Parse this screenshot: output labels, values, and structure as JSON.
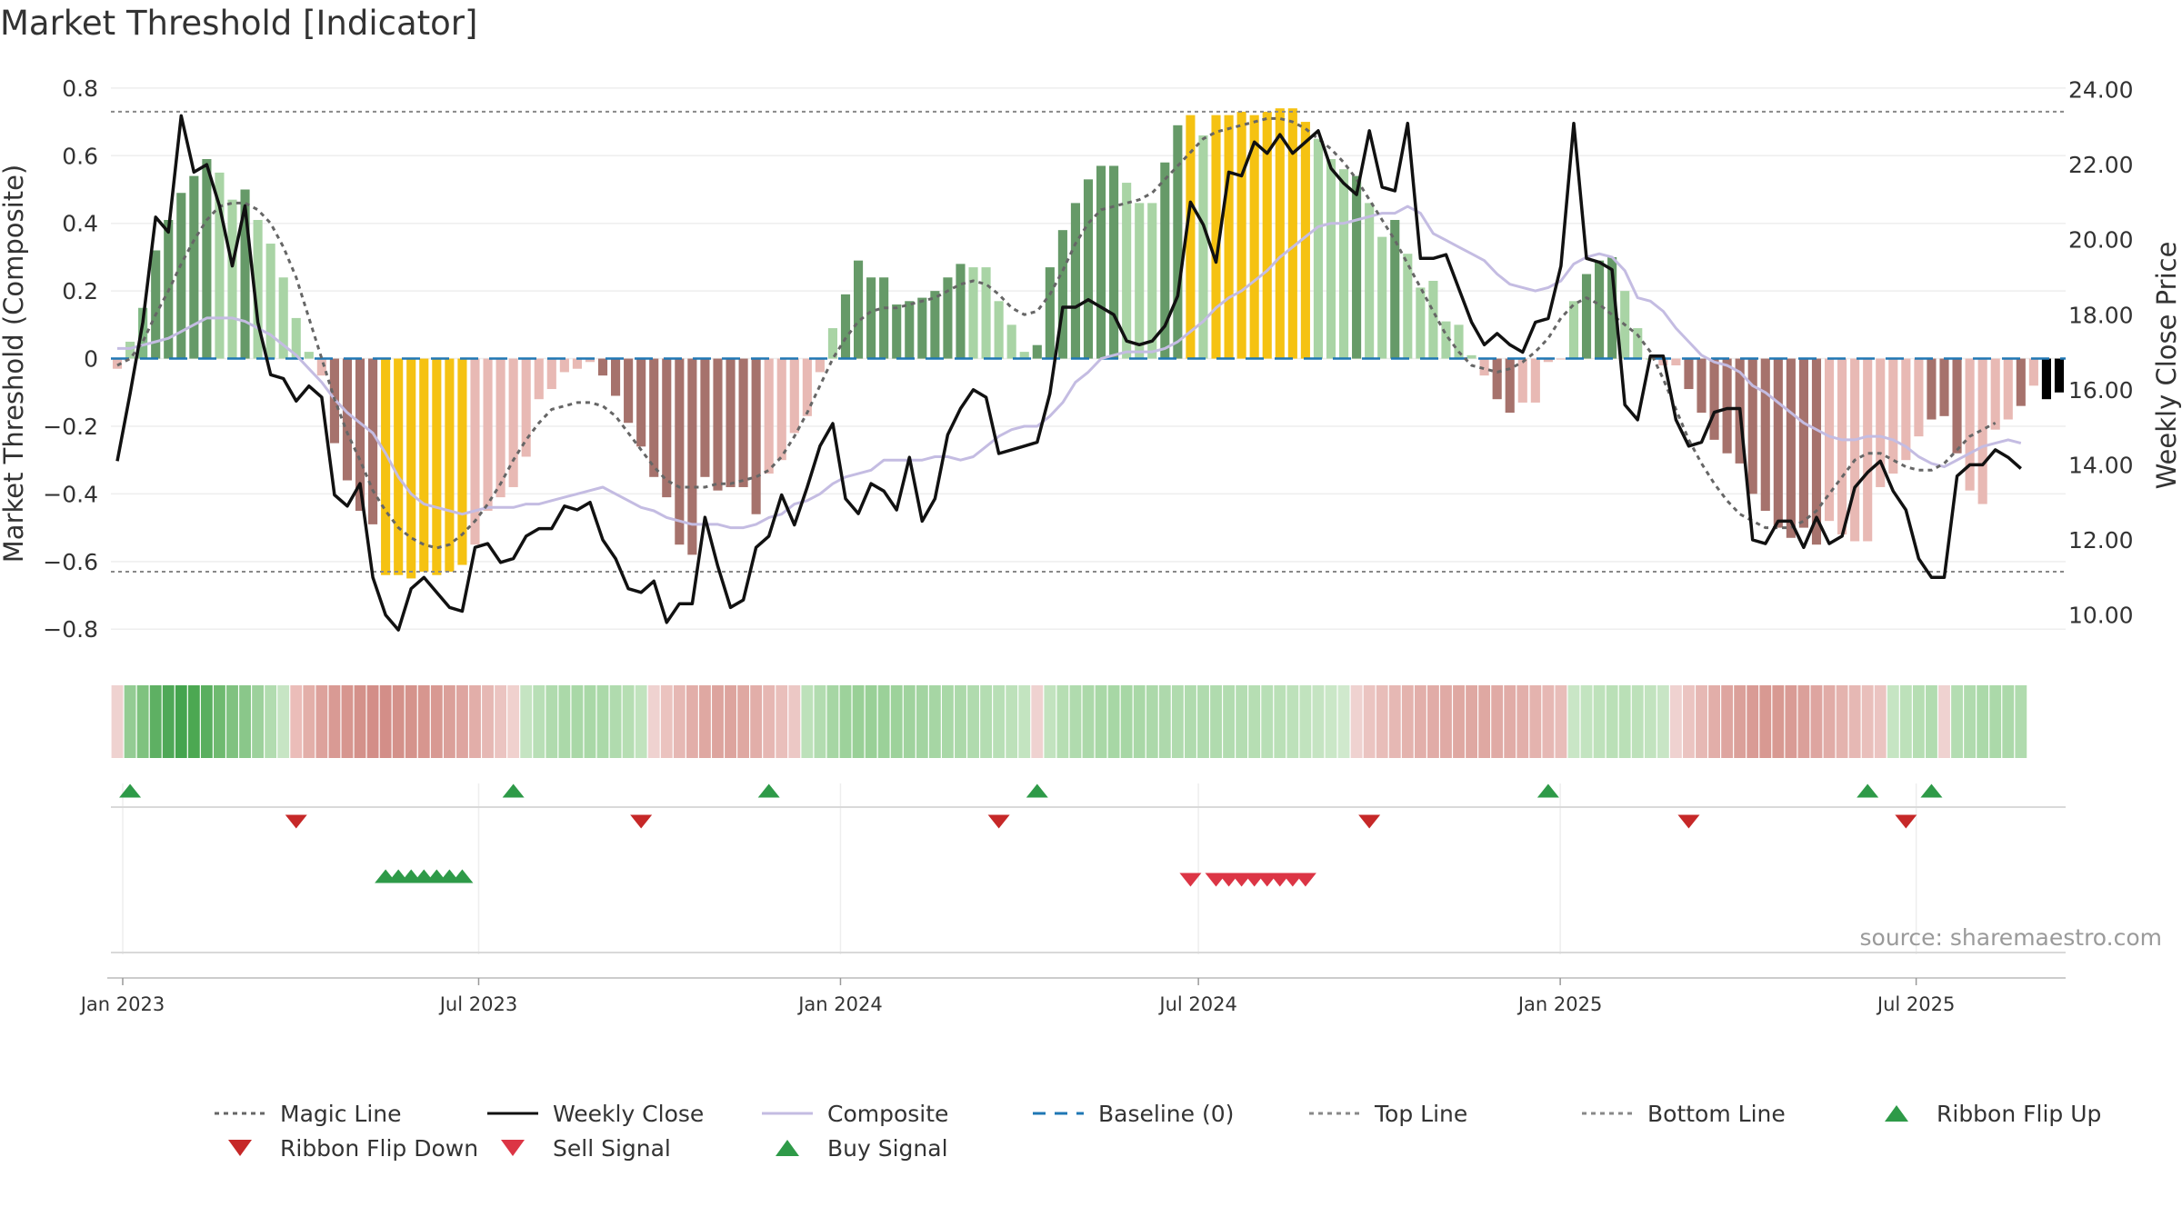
{
  "chart_data": {
    "type": "bar",
    "title": "Market Threshold [Indicator]",
    "ylabel_left": "Market Threshold (Composite)",
    "ylabel_right": "Weekly Close Price",
    "ylim_left": [
      -0.88,
      0.84
    ],
    "ylim_right": [
      8.9,
      24.4
    ],
    "yticks_left": [
      "0.8",
      "0.6",
      "0.4",
      "0.2",
      "0",
      "−0.2",
      "−0.4",
      "−0.6",
      "−0.8"
    ],
    "yticks_left_values": [
      0.8,
      0.6,
      0.4,
      0.2,
      0,
      -0.2,
      -0.4,
      -0.6,
      -0.8
    ],
    "yticks_right": [
      "24.00",
      "22.00",
      "20.00",
      "18.00",
      "16.00",
      "14.00",
      "12.00",
      "10.00"
    ],
    "yticks_right_values": [
      24,
      22,
      20,
      18,
      16,
      14,
      12,
      10
    ],
    "x_start": "2022-12-26",
    "x_end": "2025-09-15",
    "x_ticks": [
      {
        "label": "Jan 2023",
        "date": "2023-01-01"
      },
      {
        "label": "Jul 2023",
        "date": "2023-07-01"
      },
      {
        "label": "Jan 2024",
        "date": "2024-01-01"
      },
      {
        "label": "Jul 2024",
        "date": "2024-07-01"
      },
      {
        "label": "Jan 2025",
        "date": "2025-01-01"
      },
      {
        "label": "Jul 2025",
        "date": "2025-07-01"
      }
    ],
    "grid": true,
    "legend_position": "bottom",
    "top_line": 0.73,
    "bottom_line": -0.63,
    "baseline": 0,
    "composite_bars": [
      -0.03,
      0.05,
      0.15,
      0.32,
      0.41,
      0.49,
      0.54,
      0.59,
      0.55,
      0.47,
      0.5,
      0.41,
      0.34,
      0.24,
      0.12,
      0.02,
      -0.05,
      -0.25,
      -0.36,
      -0.45,
      -0.49,
      -0.64,
      -0.64,
      -0.65,
      -0.63,
      -0.64,
      -0.63,
      -0.61,
      -0.55,
      -0.45,
      -0.41,
      -0.38,
      -0.29,
      -0.12,
      -0.09,
      -0.04,
      -0.03,
      -0.01,
      -0.05,
      -0.11,
      -0.19,
      -0.26,
      -0.35,
      -0.41,
      -0.55,
      -0.58,
      -0.35,
      -0.39,
      -0.38,
      -0.38,
      -0.46,
      -0.34,
      -0.3,
      -0.22,
      -0.17,
      -0.04,
      0.09,
      0.19,
      0.29,
      0.24,
      0.24,
      0.16,
      0.17,
      0.18,
      0.2,
      0.24,
      0.28,
      0.27,
      0.27,
      0.17,
      0.1,
      0.02,
      0.04,
      0.27,
      0.38,
      0.46,
      0.53,
      0.57,
      0.57,
      0.52,
      0.46,
      0.46,
      0.58,
      0.69,
      0.72,
      0.66,
      0.72,
      0.72,
      0.73,
      0.72,
      0.73,
      0.74,
      0.74,
      0.7,
      0.65,
      0.59,
      0.56,
      0.54,
      0.46,
      0.36,
      0.41,
      0.31,
      0.21,
      0.23,
      0.11,
      0.1,
      0.01,
      -0.05,
      -0.12,
      -0.16,
      -0.13,
      -0.13,
      -0.01,
      0.0,
      0.17,
      0.25,
      0.29,
      0.3,
      0.2,
      0.09,
      0.0,
      -0.02,
      -0.02,
      -0.09,
      -0.16,
      -0.24,
      -0.28,
      -0.31,
      -0.4,
      -0.45,
      -0.5,
      -0.53,
      -0.5,
      -0.55,
      -0.48,
      -0.52,
      -0.54,
      -0.54,
      -0.38,
      -0.34,
      -0.3,
      -0.23,
      -0.18,
      -0.17,
      -0.28,
      -0.39,
      -0.43,
      -0.21,
      -0.18,
      -0.14,
      -0.08,
      -0.12,
      -0.1
    ],
    "bar_colors": [
      "#e8b9b4",
      "#a9d4a5",
      "#7fb883",
      "#669a68",
      "#669a68",
      "#669a68",
      "#669a68",
      "#669a68",
      "#a9d4a5",
      "#a9d4a5",
      "#669a68",
      "#a9d4a5",
      "#a9d4a5",
      "#a9d4a5",
      "#a9d4a5",
      "#a9d4a5",
      "#e8b9b4",
      "#a6726c",
      "#a6726c",
      "#a6726c",
      "#a6726c",
      "#f5c212",
      "#f5c212",
      "#f5c212",
      "#f5c212",
      "#f5c212",
      "#f5c212",
      "#f5c212",
      "#e8b9b4",
      "#e8b9b4",
      "#e8b9b4",
      "#e8b9b4",
      "#e8b9b4",
      "#e8b9b4",
      "#e8b9b4",
      "#e8b9b4",
      "#e8b9b4",
      "#e8b9b4",
      "#a6726c",
      "#a6726c",
      "#a6726c",
      "#a6726c",
      "#a6726c",
      "#a6726c",
      "#a6726c",
      "#a6726c",
      "#a6726c",
      "#a6726c",
      "#a6726c",
      "#a6726c",
      "#a6726c",
      "#e8b9b4",
      "#e8b9b4",
      "#e8b9b4",
      "#e8b9b4",
      "#e8b9b4",
      "#a9d4a5",
      "#669a68",
      "#669a68",
      "#669a68",
      "#669a68",
      "#669a68",
      "#669a68",
      "#669a68",
      "#669a68",
      "#669a68",
      "#669a68",
      "#a9d4a5",
      "#a9d4a5",
      "#a9d4a5",
      "#a9d4a5",
      "#a9d4a5",
      "#669a68",
      "#669a68",
      "#669a68",
      "#669a68",
      "#669a68",
      "#669a68",
      "#669a68",
      "#a9d4a5",
      "#a9d4a5",
      "#a9d4a5",
      "#669a68",
      "#669a68",
      "#f5c212",
      "#a9d4a5",
      "#f5c212",
      "#f5c212",
      "#f5c212",
      "#f5c212",
      "#f5c212",
      "#f5c212",
      "#f5c212",
      "#f5c212",
      "#a9d4a5",
      "#a9d4a5",
      "#a9d4a5",
      "#669a68",
      "#a9d4a5",
      "#a9d4a5",
      "#669a68",
      "#a9d4a5",
      "#a9d4a5",
      "#a9d4a5",
      "#a9d4a5",
      "#a9d4a5",
      "#a9d4a5",
      "#e8b9b4",
      "#a6726c",
      "#a6726c",
      "#e8b9b4",
      "#e8b9b4",
      "#e8b9b4",
      "#e8b9b4",
      "#a9d4a5",
      "#669a68",
      "#669a68",
      "#669a68",
      "#a9d4a5",
      "#a9d4a5",
      "#a9d4a5",
      "#e8b9b4",
      "#e8b9b4",
      "#a6726c",
      "#a6726c",
      "#a6726c",
      "#a6726c",
      "#a6726c",
      "#a6726c",
      "#a6726c",
      "#a6726c",
      "#a6726c",
      "#a6726c",
      "#a6726c",
      "#e8b9b4",
      "#e8b9b4",
      "#e8b9b4",
      "#e8b9b4",
      "#e8b9b4",
      "#e8b9b4",
      "#e8b9b4",
      "#e8b9b4",
      "#a6726c",
      "#a6726c",
      "#a6726c",
      "#e8b9b4",
      "#e8b9b4",
      "#e8b9b4",
      "#e8b9b4",
      "#a6726c",
      "#e8b9b4"
    ],
    "ribbon_colors": [
      "#efd2d0",
      "#93cc93",
      "#7fc27f",
      "#5eb063",
      "#4fa857",
      "#44a44e",
      "#4ca852",
      "#5aaf5f",
      "#6fba70",
      "#80c280",
      "#8ac78a",
      "#9dd19c",
      "#b2dcb0",
      "#c7e5c4",
      "#ebbdb9",
      "#e3afa9",
      "#dda29c",
      "#d99a94",
      "#d7968f",
      "#d4918a",
      "#d38e88",
      "#d38e88",
      "#d4918a",
      "#d5938c",
      "#d7968f",
      "#d89992",
      "#dba09a",
      "#dea5a0",
      "#e2aea9",
      "#e6b8b4",
      "#ebc4c1",
      "#f0d1ce",
      "#c5e4c2",
      "#b8dfb6",
      "#b0dbae",
      "#abd9a9",
      "#a9d8a7",
      "#a9d8a7",
      "#abd9a9",
      "#b0dbae",
      "#b6deb3",
      "#c1e3be",
      "#efd2d0",
      "#ebc3bf",
      "#e6b8b4",
      "#e2aea9",
      "#dfa8a2",
      "#dda49e",
      "#dda49e",
      "#dfa8a2",
      "#e2aea9",
      "#e6b7b3",
      "#e9bfbb",
      "#ecc8c5",
      "#bde1ba",
      "#b2dcb0",
      "#a6d6a4",
      "#9dd29b",
      "#99d097",
      "#99d097",
      "#9bd199",
      "#9dd29b",
      "#a0d39e",
      "#a3d4a1",
      "#a6d6a4",
      "#a9d8a7",
      "#acd9aa",
      "#b0dbae",
      "#b4ddb2",
      "#b8dfb6",
      "#bde1ba",
      "#c3e4c0",
      "#efd2d0",
      "#c2e3bf",
      "#b6deb3",
      "#b0dbae",
      "#acd9aa",
      "#a9d8a7",
      "#a7d7a5",
      "#a7d7a5",
      "#a9d8a7",
      "#acd9aa",
      "#aed9ac",
      "#b0dbae",
      "#b0dbae",
      "#b0dbae",
      "#b0dbae",
      "#b2dcb0",
      "#b4ddb2",
      "#b6deb3",
      "#b8dfb6",
      "#bae0b7",
      "#bde1ba",
      "#c1e3be",
      "#c5e4c2",
      "#cae7c7",
      "#d0e9cd",
      "#efd2d0",
      "#ebc4c1",
      "#e8bdb9",
      "#e6b8b4",
      "#e4b3ae",
      "#e2afaa",
      "#e1aca7",
      "#e0aaa5",
      "#dfa8a2",
      "#dfa8a2",
      "#dfa8a2",
      "#e0aaa5",
      "#e1aca7",
      "#e2afaa",
      "#e4b3ae",
      "#e6b8b4",
      "#e8bdb9",
      "#c9e6c6",
      "#c3e4c0",
      "#bee2bb",
      "#bae0b7",
      "#bae0b7",
      "#bde1ba",
      "#c2e3bf",
      "#c8e5c5",
      "#efd2d0",
      "#ebc4c1",
      "#e6b8b4",
      "#e2aea9",
      "#dea5a0",
      "#dba09a",
      "#d99b95",
      "#d89992",
      "#d89992",
      "#d99b95",
      "#dba09a",
      "#dea5a0",
      "#e1aca7",
      "#e4b3ae",
      "#e6b8b4",
      "#e9bfbb",
      "#ebc4c1",
      "#c6e5c3",
      "#bde1ba",
      "#b6deb3",
      "#b2dcb0",
      "#efd2d0",
      "#b4ddb2",
      "#b0dbae",
      "#abd9a9",
      "#abd9a9",
      "#acd9aa",
      "#b0dbae"
    ],
    "series": [
      {
        "name": "Magic Line",
        "color": "#666666",
        "y_axis": "left",
        "values": [
          -0.02,
          0.0,
          0.05,
          0.13,
          0.2,
          0.28,
          0.35,
          0.41,
          0.45,
          0.46,
          0.46,
          0.44,
          0.4,
          0.33,
          0.24,
          0.12,
          0.0,
          -0.12,
          -0.22,
          -0.3,
          -0.39,
          -0.45,
          -0.5,
          -0.53,
          -0.55,
          -0.56,
          -0.55,
          -0.52,
          -0.48,
          -0.43,
          -0.37,
          -0.3,
          -0.24,
          -0.19,
          -0.15,
          -0.14,
          -0.13,
          -0.13,
          -0.14,
          -0.17,
          -0.22,
          -0.27,
          -0.32,
          -0.36,
          -0.38,
          -0.38,
          -0.38,
          -0.37,
          -0.37,
          -0.36,
          -0.35,
          -0.33,
          -0.29,
          -0.23,
          -0.16,
          -0.08,
          0.0,
          0.06,
          0.11,
          0.14,
          0.15,
          0.15,
          0.16,
          0.17,
          0.18,
          0.2,
          0.22,
          0.23,
          0.22,
          0.19,
          0.15,
          0.13,
          0.14,
          0.19,
          0.26,
          0.34,
          0.4,
          0.44,
          0.45,
          0.46,
          0.47,
          0.49,
          0.53,
          0.57,
          0.61,
          0.65,
          0.67,
          0.68,
          0.69,
          0.7,
          0.71,
          0.71,
          0.7,
          0.68,
          0.65,
          0.62,
          0.58,
          0.53,
          0.47,
          0.41,
          0.35,
          0.28,
          0.21,
          0.14,
          0.07,
          0.02,
          -0.02,
          -0.03,
          -0.04,
          -0.03,
          -0.01,
          0.02,
          0.06,
          0.12,
          0.16,
          0.18,
          0.16,
          0.13,
          0.1,
          0.07,
          0.02,
          -0.06,
          -0.15,
          -0.24,
          -0.31,
          -0.37,
          -0.42,
          -0.46,
          -0.48,
          -0.5,
          -0.5,
          -0.5,
          -0.48,
          -0.45,
          -0.4,
          -0.35,
          -0.3,
          -0.28,
          -0.28,
          -0.3,
          -0.32,
          -0.33,
          -0.33,
          -0.31,
          -0.27,
          -0.23,
          -0.21,
          -0.19
        ]
      },
      {
        "name": "Weekly Close",
        "color": "#111111",
        "y_axis": "right",
        "values": [
          14.1,
          15.9,
          17.8,
          20.6,
          20.2,
          23.3,
          21.8,
          22.0,
          20.9,
          19.3,
          20.9,
          17.8,
          16.4,
          16.3,
          15.7,
          16.1,
          15.8,
          13.2,
          12.9,
          13.5,
          11.0,
          10.0,
          9.6,
          10.7,
          11.0,
          10.6,
          10.2,
          10.1,
          11.8,
          11.9,
          11.4,
          11.5,
          12.1,
          12.3,
          12.3,
          12.9,
          12.8,
          13.0,
          12.0,
          11.5,
          10.7,
          10.6,
          10.9,
          9.8,
          10.3,
          10.3,
          12.6,
          11.3,
          10.2,
          10.4,
          11.8,
          12.1,
          13.2,
          12.4,
          13.4,
          14.5,
          15.1,
          13.1,
          12.7,
          13.5,
          13.3,
          12.8,
          14.2,
          12.5,
          13.1,
          14.8,
          15.5,
          16.0,
          15.8,
          14.3,
          14.4,
          14.5,
          14.6,
          15.9,
          18.2,
          18.2,
          18.4,
          18.2,
          18.0,
          17.3,
          17.2,
          17.3,
          17.7,
          18.5,
          21.0,
          20.4,
          19.4,
          21.8,
          21.7,
          22.6,
          22.3,
          22.8,
          22.3,
          22.6,
          22.9,
          21.9,
          21.5,
          21.2,
          22.9,
          21.4,
          21.3,
          23.1,
          19.5,
          19.5,
          19.6,
          18.7,
          17.8,
          17.2,
          17.5,
          17.2,
          17.0,
          17.8,
          17.9,
          19.3,
          23.1,
          19.5,
          19.4,
          19.2,
          15.6,
          15.2,
          16.9,
          16.9,
          15.2,
          14.5,
          14.6,
          15.4,
          15.5,
          15.5,
          12.0,
          11.9,
          12.5,
          12.5,
          11.8,
          12.6,
          11.9,
          12.1,
          13.4,
          13.8,
          14.1,
          13.3,
          12.8,
          11.5,
          11.0,
          11.0,
          13.7,
          14.0,
          14.0,
          14.4,
          14.2,
          13.9
        ]
      },
      {
        "name": "Composite",
        "color": "#c4bce2",
        "y_axis": "left",
        "values": [
          0.03,
          0.03,
          0.04,
          0.05,
          0.06,
          0.08,
          0.1,
          0.12,
          0.12,
          0.12,
          0.11,
          0.09,
          0.07,
          0.04,
          0.01,
          -0.03,
          -0.07,
          -0.12,
          -0.16,
          -0.19,
          -0.22,
          -0.28,
          -0.35,
          -0.4,
          -0.43,
          -0.44,
          -0.45,
          -0.46,
          -0.45,
          -0.44,
          -0.44,
          -0.44,
          -0.43,
          -0.43,
          -0.42,
          -0.41,
          -0.4,
          -0.39,
          -0.38,
          -0.4,
          -0.42,
          -0.44,
          -0.45,
          -0.47,
          -0.48,
          -0.49,
          -0.49,
          -0.49,
          -0.5,
          -0.5,
          -0.49,
          -0.47,
          -0.46,
          -0.43,
          -0.42,
          -0.4,
          -0.37,
          -0.35,
          -0.34,
          -0.33,
          -0.3,
          -0.3,
          -0.3,
          -0.3,
          -0.29,
          -0.29,
          -0.3,
          -0.29,
          -0.26,
          -0.23,
          -0.21,
          -0.2,
          -0.2,
          -0.17,
          -0.13,
          -0.07,
          -0.04,
          0.0,
          0.01,
          0.02,
          0.02,
          0.02,
          0.03,
          0.05,
          0.08,
          0.11,
          0.15,
          0.18,
          0.2,
          0.23,
          0.26,
          0.3,
          0.33,
          0.36,
          0.39,
          0.4,
          0.4,
          0.41,
          0.42,
          0.43,
          0.43,
          0.45,
          0.43,
          0.37,
          0.35,
          0.33,
          0.31,
          0.29,
          0.25,
          0.22,
          0.21,
          0.2,
          0.21,
          0.23,
          0.28,
          0.3,
          0.31,
          0.3,
          0.26,
          0.18,
          0.17,
          0.14,
          0.09,
          0.05,
          0.01,
          -0.01,
          -0.02,
          -0.04,
          -0.08,
          -0.1,
          -0.13,
          -0.16,
          -0.19,
          -0.21,
          -0.23,
          -0.24,
          -0.24,
          -0.23,
          -0.23,
          -0.24,
          -0.26,
          -0.29,
          -0.31,
          -0.32,
          -0.3,
          -0.28,
          -0.26,
          -0.25,
          -0.24,
          -0.25
        ]
      }
    ],
    "signals": {
      "ribbon_flip_up": [
        1,
        31,
        51,
        72,
        112,
        137,
        142
      ],
      "ribbon_flip_down": [
        14,
        41,
        69,
        98,
        123,
        140
      ],
      "buy_signal": [
        21,
        22,
        23,
        24,
        25,
        26,
        27
      ],
      "sell_signal": [
        84,
        86,
        87,
        88,
        89,
        90,
        91,
        92,
        93
      ]
    },
    "legend": [
      {
        "label": "Magic Line",
        "marker": "dotted-line",
        "color": "#666666"
      },
      {
        "label": "Weekly Close",
        "marker": "solid-line",
        "color": "#111111"
      },
      {
        "label": "Composite",
        "marker": "solid-line",
        "color": "#c4bce2"
      },
      {
        "label": "Baseline (0)",
        "marker": "dashed-line",
        "color": "#1f77b4"
      },
      {
        "label": "Top Line",
        "marker": "dotted-line",
        "color": "#888888"
      },
      {
        "label": "Bottom Line",
        "marker": "dotted-line",
        "color": "#888888"
      },
      {
        "label": "Ribbon Flip Up",
        "marker": "triangle-up",
        "color": "#2e9a48"
      },
      {
        "label": "Ribbon Flip Down",
        "marker": "triangle-down",
        "color": "#c62828"
      },
      {
        "label": "Sell Signal",
        "marker": "triangle-down",
        "color": "#dc3545"
      },
      {
        "label": "Buy Signal",
        "marker": "triangle-up",
        "color": "#2e9a48"
      }
    ],
    "source": "source: sharemaestro.com"
  }
}
